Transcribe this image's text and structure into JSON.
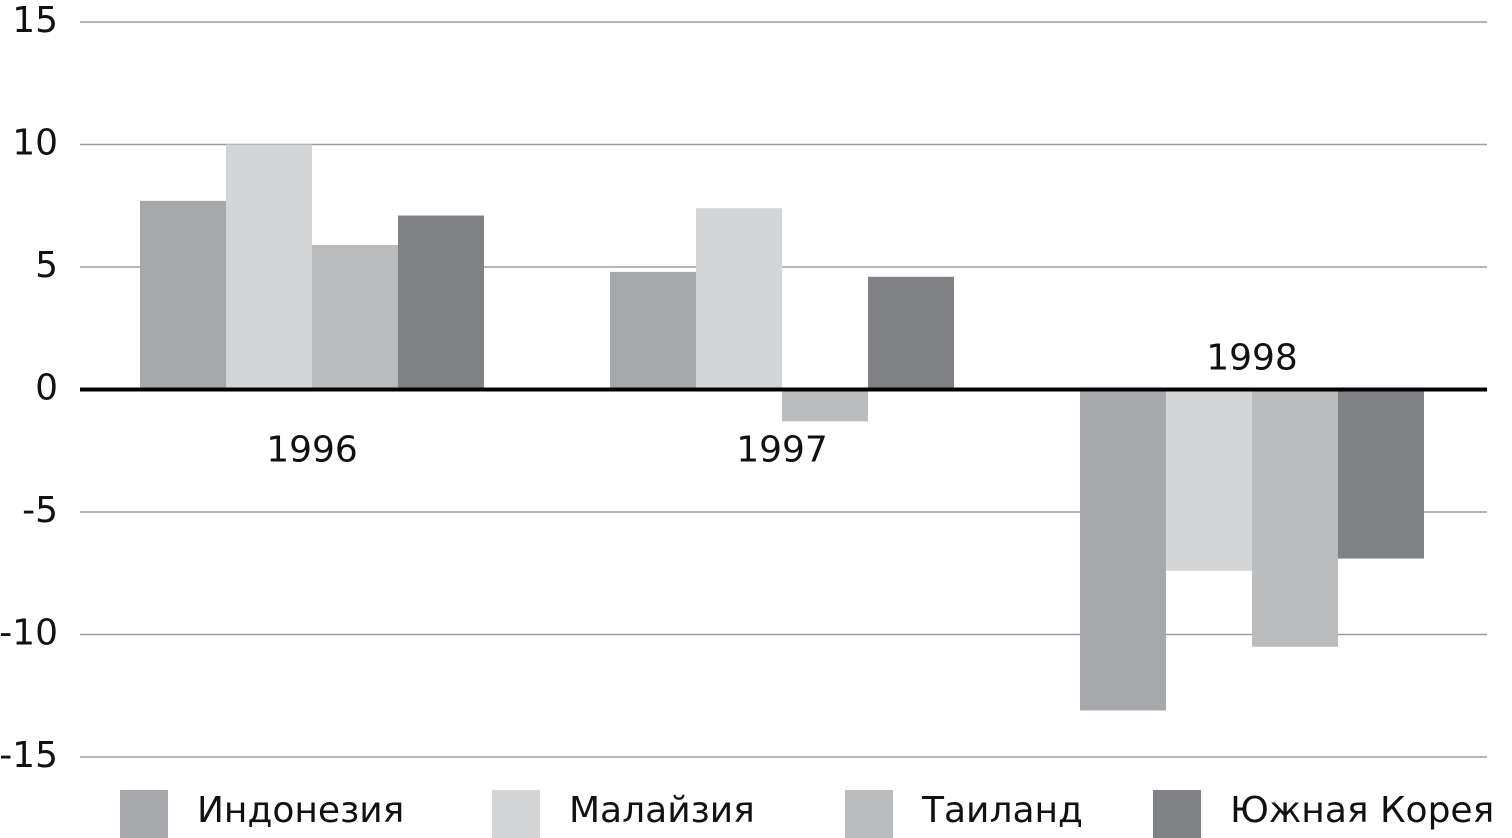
{
  "chart_data": {
    "type": "bar",
    "categories": [
      "1996",
      "1997",
      "1998"
    ],
    "series": [
      {
        "name": "Индонезия",
        "color": "#a7a8ab",
        "values": [
          7.7,
          4.8,
          -13.1
        ]
      },
      {
        "name": "Малайзия",
        "color": "#d4d5d6",
        "values": [
          10.0,
          7.4,
          -7.4
        ]
      },
      {
        "name": "Таиланд",
        "color": "#bbbcbe",
        "values": [
          5.9,
          -1.3,
          -10.5
        ]
      },
      {
        "name": "Южная Корея",
        "color": "#808184",
        "values": [
          7.1,
          4.6,
          -6.9
        ]
      }
    ],
    "ylim": [
      -15,
      15
    ],
    "yticks": [
      -15,
      -10,
      -5,
      0,
      5,
      10,
      15
    ],
    "grid": true
  }
}
